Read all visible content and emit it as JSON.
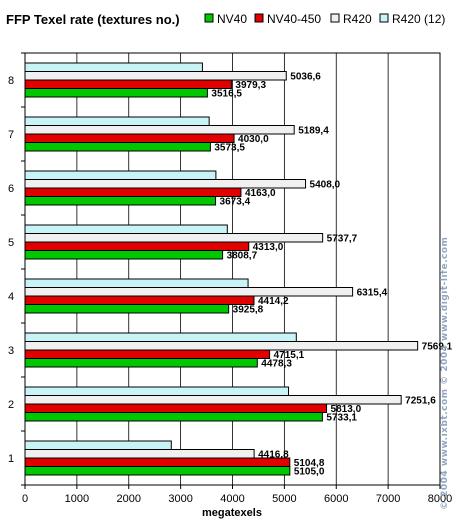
{
  "chart_data": {
    "type": "bar",
    "orientation": "horizontal",
    "title": "FFP Texel rate (textures no.)",
    "xlabel": "megatexels",
    "ylabel": "",
    "categories": [
      "1",
      "2",
      "3",
      "4",
      "5",
      "6",
      "7",
      "8"
    ],
    "xlim": [
      0,
      8000
    ],
    "xticks": [
      "0",
      "1000",
      "2000",
      "3000",
      "4000",
      "5000",
      "6000",
      "7000",
      "8000"
    ],
    "grid": true,
    "legend_position": "top",
    "series": [
      {
        "name": "NV40",
        "color": "#00c800",
        "values": [
          5105.0,
          5733.1,
          4478.3,
          3925.8,
          3808.7,
          3673.4,
          3573.5,
          3516.5
        ],
        "labels": [
          "5105,0",
          "5733,1",
          "4478,3",
          "3925,8",
          "3808,7",
          "3673,4",
          "3573,5",
          "3516,5"
        ]
      },
      {
        "name": "NV40-450",
        "color": "#e00000",
        "values": [
          5104.8,
          5813.0,
          4715.1,
          4414.2,
          4313.0,
          4163.0,
          4030.0,
          3979.3
        ],
        "labels": [
          "5104,8",
          "5813,0",
          "4715,1",
          "4414,2",
          "4313,0",
          "4163,0",
          "4030,0",
          "3979,3"
        ]
      },
      {
        "name": "R420",
        "color": "#f0f0f0",
        "values": [
          4416.8,
          7251.6,
          7569.1,
          6315.4,
          5737.7,
          5408.0,
          5189.4,
          5036.6
        ],
        "labels": [
          "4416,8",
          "7251,6",
          "7569,1",
          "6315,4",
          "5737,7",
          "5408,0",
          "5189,4",
          "5036,6"
        ]
      },
      {
        "name": "R420 (12)",
        "color": "#c8f4f8",
        "values": [
          2820,
          5080,
          5230,
          4300,
          3900,
          3680,
          3550,
          3420
        ],
        "labels": []
      }
    ]
  },
  "watermark": "© 2004 www.ixbt.com © 2004 www.digit-life.com"
}
